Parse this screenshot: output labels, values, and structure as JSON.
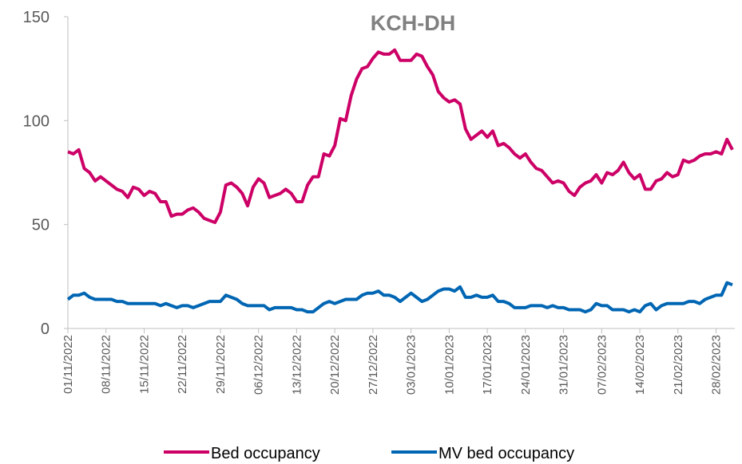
{
  "chart_data": {
    "type": "line",
    "title": "KCH-DH",
    "categories": [
      "01/11/2022",
      null,
      null,
      null,
      null,
      null,
      null,
      "08/11/2022",
      null,
      null,
      null,
      null,
      null,
      null,
      "15/11/2022",
      null,
      null,
      null,
      null,
      null,
      null,
      "22/11/2022",
      null,
      null,
      null,
      null,
      null,
      null,
      "29/11/2022",
      null,
      null,
      null,
      null,
      null,
      null,
      "06/12/2022",
      null,
      null,
      null,
      null,
      null,
      null,
      "13/12/2022",
      null,
      null,
      null,
      null,
      null,
      null,
      "20/12/2022",
      null,
      null,
      null,
      null,
      null,
      null,
      "27/12/2022",
      null,
      null,
      null,
      null,
      null,
      null,
      "03/01/2023",
      null,
      null,
      null,
      null,
      null,
      null,
      "10/01/2023",
      null,
      null,
      null,
      null,
      null,
      null,
      "17/01/2023",
      null,
      null,
      null,
      null,
      null,
      null,
      "24/01/2023",
      null,
      null,
      null,
      null,
      null,
      null,
      "31/01/2023",
      null,
      null,
      null,
      null,
      null,
      null,
      "07/02/2023",
      null,
      null,
      null,
      null,
      null,
      null,
      "14/02/2023",
      null,
      null,
      null,
      null,
      null,
      null,
      "21/02/2023",
      null,
      null,
      null,
      null,
      null,
      null,
      "28/02/2023",
      null,
      null,
      null
    ],
    "series": [
      {
        "name": "Bed occupancy",
        "color": "#cc0066",
        "values": [
          85,
          84,
          86,
          77,
          75,
          71,
          73,
          71,
          69,
          67,
          66,
          63,
          68,
          67,
          64,
          66,
          65,
          61,
          61,
          54,
          55,
          55,
          57,
          58,
          56,
          53,
          52,
          51,
          56,
          69,
          70,
          68,
          65,
          59,
          68,
          72,
          70,
          63,
          64,
          65,
          67,
          65,
          61,
          61,
          69,
          73,
          73,
          84,
          83,
          88,
          101,
          100,
          112,
          120,
          125,
          126,
          130,
          133,
          132,
          132,
          134,
          129,
          129,
          129,
          132,
          131,
          126,
          122,
          114,
          111,
          109,
          110,
          108,
          96,
          91,
          93,
          95,
          92,
          95,
          88,
          89,
          87,
          84,
          82,
          84,
          80,
          77,
          76,
          73,
          70,
          71,
          70,
          66,
          64,
          68,
          70,
          71,
          74,
          70,
          75,
          74,
          76,
          80,
          75,
          72,
          74,
          67,
          67,
          71,
          72,
          75,
          73,
          74,
          81,
          80,
          81,
          83,
          84,
          84,
          85,
          84,
          91,
          86
        ]
      },
      {
        "name": "MV bed occupancy",
        "color": "#0066b3",
        "values": [
          14,
          16,
          16,
          17,
          15,
          14,
          14,
          14,
          14,
          13,
          13,
          12,
          12,
          12,
          12,
          12,
          12,
          11,
          12,
          11,
          10,
          11,
          11,
          10,
          11,
          12,
          13,
          13,
          13,
          16,
          15,
          14,
          12,
          11,
          11,
          11,
          11,
          9,
          10,
          10,
          10,
          10,
          9,
          9,
          8,
          8,
          10,
          12,
          13,
          12,
          13,
          14,
          14,
          14,
          16,
          17,
          17,
          18,
          16,
          16,
          15,
          13,
          15,
          17,
          15,
          13,
          14,
          16,
          18,
          19,
          19,
          18,
          20,
          15,
          15,
          16,
          15,
          15,
          16,
          13,
          13,
          12,
          10,
          10,
          10,
          11,
          11,
          11,
          10,
          11,
          10,
          10,
          9,
          9,
          9,
          8,
          9,
          12,
          11,
          11,
          9,
          9,
          9,
          8,
          9,
          8,
          11,
          12,
          9,
          11,
          12,
          12,
          12,
          12,
          13,
          13,
          12,
          14,
          15,
          16,
          16,
          22,
          21
        ]
      }
    ],
    "ylim": [
      0,
      150
    ],
    "yticks": [
      0,
      50,
      100,
      150
    ],
    "grid": false,
    "legend": "bottom"
  }
}
